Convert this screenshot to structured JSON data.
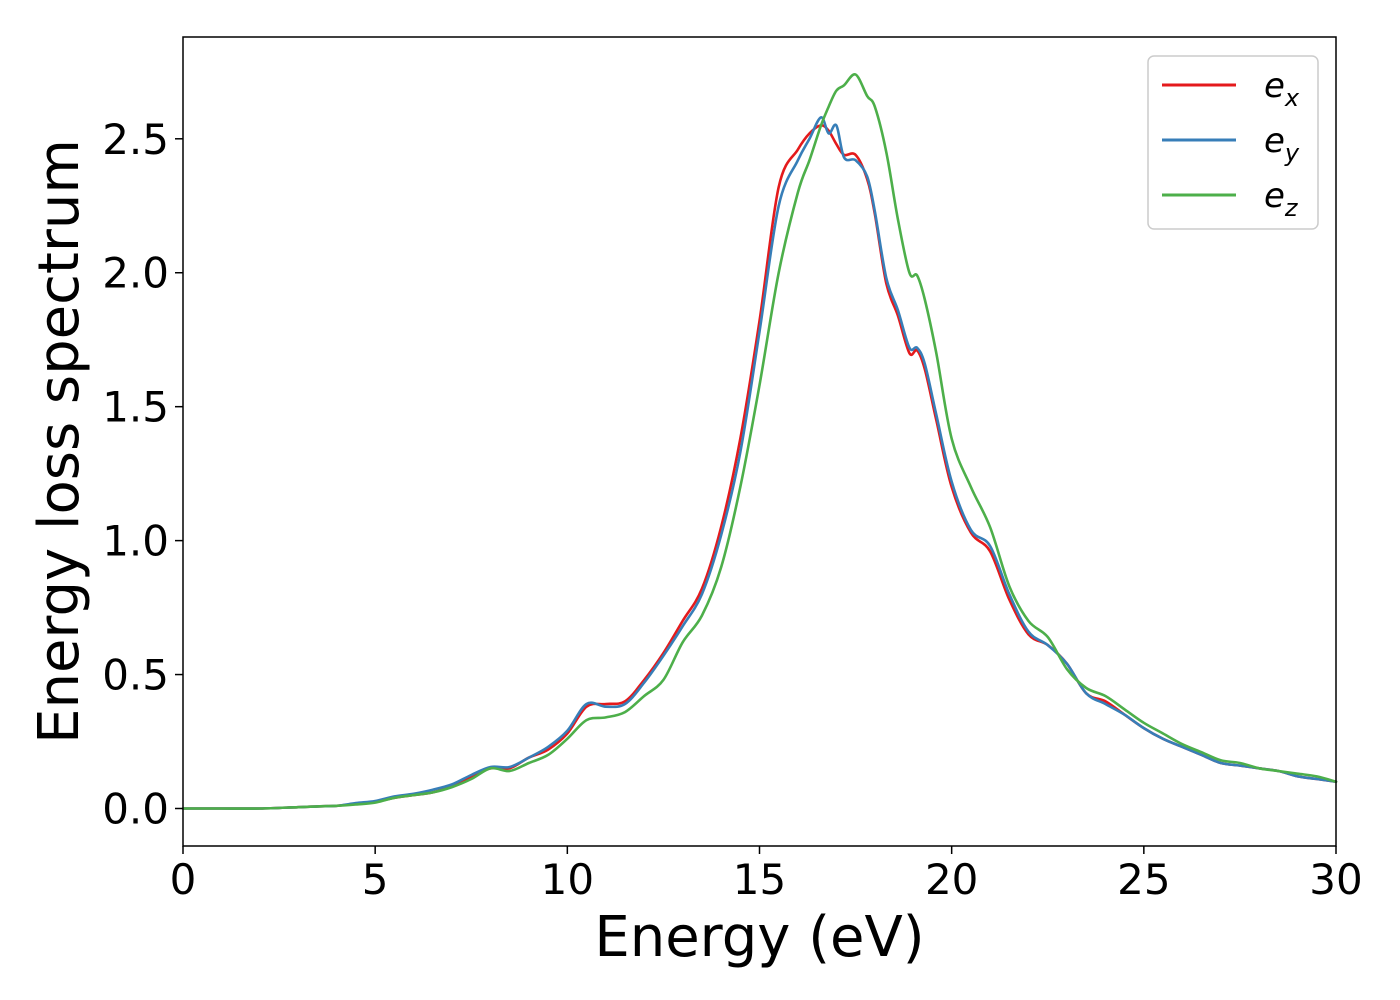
{
  "chart_data": {
    "type": "line",
    "title": "",
    "xlabel": "Energy (eV)",
    "ylabel": "Energy loss spectrum",
    "xlim": [
      0,
      30
    ],
    "ylim": [
      -0.14,
      2.88
    ],
    "xticks": [
      0,
      5,
      10,
      15,
      20,
      25,
      30
    ],
    "xtick_labels": [
      "0",
      "5",
      "10",
      "15",
      "20",
      "25",
      "30"
    ],
    "yticks": [
      0.0,
      0.5,
      1.0,
      1.5,
      2.0,
      2.5
    ],
    "ytick_labels": [
      "0.0",
      "0.5",
      "1.0",
      "1.5",
      "2.0",
      "2.5"
    ],
    "grid": false,
    "legend": "top-right",
    "series": [
      {
        "name": "e",
        "subscript": "x",
        "color": "#e41a1c",
        "x": [
          0,
          1,
          2,
          3,
          3.5,
          4,
          4.5,
          5,
          5.5,
          6,
          6.5,
          7,
          7.5,
          8,
          8.5,
          9,
          9.5,
          10,
          10.5,
          11,
          11.5,
          12,
          12.5,
          13,
          13.5,
          14,
          14.5,
          15,
          15.5,
          16,
          16.3,
          16.6,
          16.8,
          17,
          17.2,
          17.5,
          17.8,
          18,
          18.3,
          18.6,
          18.9,
          19.1,
          19.3,
          19.6,
          20,
          20.5,
          21,
          21.5,
          22,
          22.5,
          23,
          23.5,
          24,
          24.5,
          25,
          25.5,
          26,
          26.5,
          27,
          27.5,
          28,
          28.5,
          29,
          29.5,
          30
        ],
        "y": [
          0.0,
          0.0,
          0.0,
          0.005,
          0.008,
          0.01,
          0.018,
          0.025,
          0.04,
          0.05,
          0.06,
          0.085,
          0.12,
          0.15,
          0.15,
          0.19,
          0.22,
          0.28,
          0.38,
          0.39,
          0.4,
          0.48,
          0.58,
          0.7,
          0.82,
          1.05,
          1.38,
          1.82,
          2.32,
          2.46,
          2.52,
          2.55,
          2.53,
          2.48,
          2.44,
          2.44,
          2.35,
          2.22,
          1.96,
          1.84,
          1.7,
          1.71,
          1.64,
          1.45,
          1.2,
          1.03,
          0.96,
          0.78,
          0.65,
          0.61,
          0.54,
          0.43,
          0.4,
          0.35,
          0.3,
          0.26,
          0.23,
          0.2,
          0.17,
          0.16,
          0.15,
          0.14,
          0.12,
          0.11,
          0.1
        ]
      },
      {
        "name": "e",
        "subscript": "y",
        "color": "#377eb8",
        "x": [
          0,
          1,
          2,
          3,
          3.5,
          4,
          4.5,
          5,
          5.5,
          6,
          6.5,
          7,
          7.5,
          8,
          8.5,
          9,
          9.5,
          10,
          10.5,
          11,
          11.5,
          12,
          12.5,
          13,
          13.5,
          14,
          14.5,
          15,
          15.5,
          16,
          16.3,
          16.6,
          16.8,
          17,
          17.2,
          17.5,
          17.8,
          18,
          18.3,
          18.6,
          18.9,
          19.1,
          19.3,
          19.6,
          20,
          20.5,
          21,
          21.5,
          22,
          22.5,
          23,
          23.5,
          24,
          24.5,
          25,
          25.5,
          26,
          26.5,
          27,
          27.5,
          28,
          28.5,
          29,
          29.5,
          30
        ],
        "y": [
          0.0,
          0.0,
          0.0,
          0.005,
          0.008,
          0.01,
          0.02,
          0.028,
          0.045,
          0.055,
          0.07,
          0.09,
          0.125,
          0.155,
          0.155,
          0.19,
          0.23,
          0.29,
          0.39,
          0.38,
          0.39,
          0.47,
          0.57,
          0.68,
          0.8,
          1.02,
          1.33,
          1.78,
          2.25,
          2.42,
          2.5,
          2.58,
          2.52,
          2.55,
          2.43,
          2.42,
          2.36,
          2.23,
          1.98,
          1.86,
          1.72,
          1.72,
          1.66,
          1.47,
          1.22,
          1.04,
          0.98,
          0.8,
          0.66,
          0.61,
          0.54,
          0.43,
          0.39,
          0.35,
          0.3,
          0.26,
          0.23,
          0.2,
          0.17,
          0.16,
          0.15,
          0.14,
          0.12,
          0.11,
          0.1
        ]
      },
      {
        "name": "e",
        "subscript": "z",
        "color": "#4daf4a",
        "x": [
          0,
          1,
          2,
          3,
          3.5,
          4,
          4.5,
          5,
          5.5,
          6,
          6.5,
          7,
          7.5,
          8,
          8.5,
          9,
          9.5,
          10,
          10.5,
          11,
          11.5,
          12,
          12.5,
          13,
          13.5,
          14,
          14.5,
          15,
          15.5,
          16,
          16.3,
          16.6,
          16.8,
          17,
          17.2,
          17.5,
          17.8,
          18,
          18.3,
          18.6,
          18.9,
          19.1,
          19.3,
          19.6,
          20,
          20.5,
          21,
          21.5,
          22,
          22.5,
          23,
          23.5,
          24,
          24.5,
          25,
          25.5,
          26,
          26.5,
          27,
          27.5,
          28,
          28.5,
          29,
          29.5,
          30
        ],
        "y": [
          0.0,
          0.0,
          0.0,
          0.005,
          0.008,
          0.01,
          0.015,
          0.022,
          0.04,
          0.05,
          0.06,
          0.08,
          0.11,
          0.15,
          0.14,
          0.17,
          0.2,
          0.26,
          0.33,
          0.34,
          0.36,
          0.42,
          0.48,
          0.62,
          0.72,
          0.9,
          1.2,
          1.58,
          2.0,
          2.3,
          2.42,
          2.55,
          2.62,
          2.68,
          2.7,
          2.74,
          2.66,
          2.62,
          2.45,
          2.2,
          2.0,
          1.99,
          1.9,
          1.7,
          1.38,
          1.2,
          1.05,
          0.83,
          0.7,
          0.64,
          0.52,
          0.45,
          0.42,
          0.37,
          0.32,
          0.28,
          0.24,
          0.21,
          0.18,
          0.17,
          0.15,
          0.14,
          0.13,
          0.12,
          0.1
        ]
      }
    ]
  }
}
